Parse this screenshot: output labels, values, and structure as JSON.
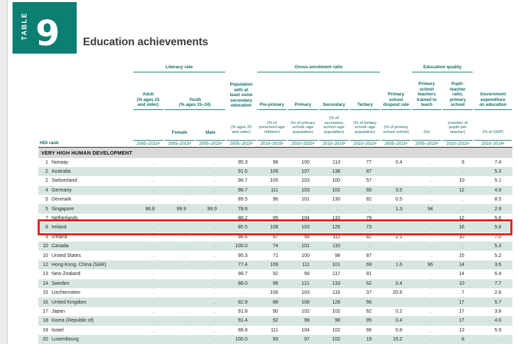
{
  "badge": {
    "label": "TABLE",
    "number": "9"
  },
  "title": "Education achievements",
  "colors": {
    "accent_teal": "#0c7e72",
    "row_alt_teal": "#d6e6e2",
    "highlight_red": "#e2231c",
    "section_band_gray": "#d9d9d9"
  },
  "table": {
    "header": {
      "hdi_rank": "HDI rank",
      "groups": {
        "literacy": "Literacy rate",
        "enrolment": "Gross enrolment ratio",
        "quality": "Education quality"
      },
      "labels": {
        "adult": "Adult\n(% ages 15\nand older)",
        "youth": "Youth\n(% ages 15–24)",
        "pop_secondary": "Population\nwith at\nleast some\nsecondary\neducation",
        "pre_primary": "Pre-primary",
        "primary": "Primary",
        "secondary": "Secondary",
        "tertiary": "Tertiary",
        "dropout": "Primary\nschool\ndropout rate",
        "trained": "Primary\nschool\nteachers\ntrained to\nteach",
        "ptr": "Pupil–\nteacher\nratio,\nprimary\nschool",
        "gov": "Government\nexpenditure\non education"
      },
      "units": {
        "female": "Female",
        "male": "Male",
        "pop_secondary": "(% ages 25\nand older)",
        "pre_primary": "(% of\npreschool-age\nchildren)",
        "primary": "(% of primary\nschool–age\npopulation)",
        "secondary": "(% of\nsecondary\nschool–age\npopulation)",
        "tertiary": "(% of tertiary\nschool–age\npopulation)",
        "dropout": "(% of primary\nschool cohort)",
        "trained": "(%)",
        "ptr": "(number of\npupils per\nteacher)",
        "gov": "(% of GDP)"
      },
      "years": [
        "2005–2015ᵃ",
        "2005–2015ᵃ",
        "2005–2015ᵃ",
        "2005–2015ᵃ",
        "2010–2015ᵃ",
        "2010–2015ᵃ",
        "2010–2015ᵃ",
        "2010–2015ᵃ",
        "2005–2015ᵃ",
        "2005–2015ᵃ",
        "2010–2015ᵃ",
        "2010–2014ᵃ"
      ]
    },
    "section": "VERY HIGH HUMAN DEVELOPMENT",
    "rows": [
      {
        "rank": "1",
        "country": "Norway",
        "values": [
          "..",
          "..",
          "..",
          "95.3",
          "98",
          "100",
          "113",
          "77",
          "0.4",
          "..",
          "9",
          "7.4"
        ],
        "highlighted": false
      },
      {
        "rank": "2",
        "country": "Australia",
        "values": [
          "..",
          "..",
          "..",
          "91.5",
          "109",
          "107",
          "138",
          "87",
          "..",
          "..",
          "..",
          "5.3"
        ],
        "highlighted": false
      },
      {
        "rank": "2",
        "country": "Switzerland",
        "values": [
          "..",
          "..",
          "..",
          "96.7",
          "105",
          "103",
          "100",
          "57",
          "..",
          "..",
          "10",
          "5.1"
        ],
        "highlighted": false
      },
      {
        "rank": "4",
        "country": "Germany",
        "values": [
          "..",
          "..",
          "..",
          "96.7",
          "111",
          "103",
          "102",
          "65",
          "3.5",
          "..",
          "12",
          "4.9"
        ],
        "highlighted": false
      },
      {
        "rank": "5",
        "country": "Denmark",
        "values": [
          "..",
          "..",
          "..",
          "89.5",
          "96",
          "101",
          "130",
          "82",
          "0.5",
          "..",
          "..",
          "8.5"
        ],
        "highlighted": false
      },
      {
        "rank": "5",
        "country": "Singapore",
        "values": [
          "96.8",
          "99.9",
          "99.9",
          "78.6",
          "..",
          "..",
          "..",
          "..",
          "1.3",
          "94",
          "..",
          "2.9"
        ],
        "highlighted": false
      },
      {
        "rank": "7",
        "country": "Netherlands",
        "values": [
          "..",
          "..",
          "..",
          "88.2",
          "95",
          "104",
          "132",
          "79",
          "..",
          "..",
          "12",
          "5.6"
        ],
        "highlighted": false
      },
      {
        "rank": "8",
        "country": "Ireland",
        "values": [
          "..",
          "..",
          "..",
          "85.5",
          "108",
          "103",
          "126",
          "73",
          "..",
          "..",
          "16",
          "5.8"
        ],
        "highlighted": true
      },
      {
        "rank": "9",
        "country": "Iceland",
        "values": [
          "..",
          "..",
          "..",
          "98.6",
          "97",
          "99",
          "111",
          "82",
          "2.1",
          "..",
          "10",
          "7.0"
        ],
        "highlighted": false
      },
      {
        "rank": "10",
        "country": "Canada",
        "values": [
          "..",
          "..",
          "..",
          "100.0",
          "74",
          "101",
          "110",
          "..",
          "..",
          "..",
          "..",
          "5.3"
        ],
        "highlighted": false
      },
      {
        "rank": "10",
        "country": "United States",
        "values": [
          "..",
          "..",
          "..",
          "95.3",
          "71",
          "100",
          "98",
          "87",
          "..",
          "..",
          "15",
          "5.2"
        ],
        "highlighted": false
      },
      {
        "rank": "12",
        "country": "Hong Kong, China (SAR)",
        "values": [
          "..",
          "..",
          "..",
          "77.4",
          "109",
          "111",
          "101",
          "69",
          "1.6",
          "96",
          "14",
          "3.6"
        ],
        "highlighted": false
      },
      {
        "rank": "13",
        "country": "New Zealand",
        "values": [
          "..",
          "..",
          "..",
          "98.7",
          "92",
          "99",
          "117",
          "81",
          "..",
          "..",
          "14",
          "6.4"
        ],
        "highlighted": false
      },
      {
        "rank": "14",
        "country": "Sweden",
        "values": [
          "..",
          "..",
          "..",
          "88.0",
          "96",
          "121",
          "133",
          "62",
          "0.4",
          "..",
          "10",
          "7.7"
        ],
        "highlighted": false
      },
      {
        "rank": "15",
        "country": "Liechtenstein",
        "values": [
          "..",
          "..",
          "..",
          "..",
          "106",
          "103",
          "116",
          "37",
          "20.6",
          "..",
          "7",
          "2.6"
        ],
        "highlighted": false
      },
      {
        "rank": "16",
        "country": "United Kingdom",
        "values": [
          "..",
          "..",
          "..",
          "82.9",
          "88",
          "108",
          "128",
          "56",
          "..",
          "..",
          "17",
          "5.7"
        ],
        "highlighted": false
      },
      {
        "rank": "17",
        "country": "Japan",
        "values": [
          "..",
          "..",
          "..",
          "91.8",
          "90",
          "102",
          "102",
          "62",
          "0.2",
          "..",
          "17",
          "3.8"
        ],
        "highlighted": false
      },
      {
        "rank": "18",
        "country": "Korea (Republic of)",
        "values": [
          "..",
          "..",
          "..",
          "91.4",
          "92",
          "99",
          "98",
          "95",
          "0.4",
          "..",
          "17",
          "4.6"
        ],
        "highlighted": false
      },
      {
        "rank": "19",
        "country": "Israel",
        "values": [
          "..",
          "..",
          "..",
          "88.8",
          "111",
          "104",
          "102",
          "66",
          "0.8",
          "..",
          "13",
          "5.9"
        ],
        "highlighted": false
      },
      {
        "rank": "20",
        "country": "Luxembourg",
        "values": [
          "..",
          "..",
          "..",
          "100.0",
          "93",
          "97",
          "102",
          "19",
          "15.2",
          "..",
          "8",
          ".."
        ],
        "highlighted": false
      }
    ]
  }
}
